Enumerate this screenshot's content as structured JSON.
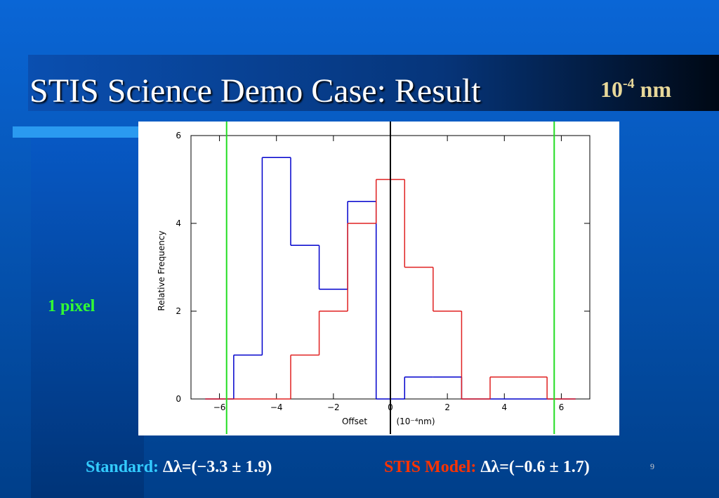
{
  "title": "STIS Science Demo Case: Result",
  "title_unit": {
    "base": "10",
    "exponent": "-4",
    "unit": "nm"
  },
  "side_note": "1 pixel",
  "slide_number": "9",
  "chart_data": {
    "type": "histogram",
    "xlabel": "Offset",
    "xlabel_unit": "(10⁻⁴nm)",
    "ylabel": "Relative Frequency",
    "bins": [
      -6.5,
      -5.5,
      -4.5,
      -3.5,
      -2.5,
      -1.5,
      -0.5,
      0.5,
      1.5,
      2.5,
      3.5,
      4.5,
      5.5,
      6.5
    ],
    "series": [
      {
        "name": "Standard:",
        "result": "Δλ=(−3.3 ± 1.9)",
        "color": "#0000cc",
        "label_color": "#33ccff",
        "values": [
          0,
          1,
          5.5,
          3.5,
          2.5,
          4.5,
          0,
          0.5,
          0.5,
          0,
          0,
          0,
          0
        ]
      },
      {
        "name": "STIS Model:",
        "result": "Δλ=(−0.6 ± 1.7)",
        "color": "#e02020",
        "label_color": "#ff3300",
        "values": [
          0,
          0,
          0,
          1,
          2,
          4,
          5,
          3,
          2,
          0,
          0.5,
          0.5,
          0
        ]
      }
    ],
    "vlines": [
      {
        "value": 0,
        "color": "#000000"
      },
      {
        "value": -5.75,
        "color": "#22dd22"
      },
      {
        "value": 5.75,
        "color": "#22dd22"
      }
    ],
    "xlim": [
      -7,
      7
    ],
    "xticks": [
      {
        "value": -6,
        "label": "−6"
      },
      {
        "value": -4,
        "label": "−4"
      },
      {
        "value": -2,
        "label": "−2"
      },
      0,
      2,
      4,
      6
    ],
    "ylim": [
      0,
      6
    ],
    "yticks": [
      0,
      2,
      4,
      6
    ]
  }
}
